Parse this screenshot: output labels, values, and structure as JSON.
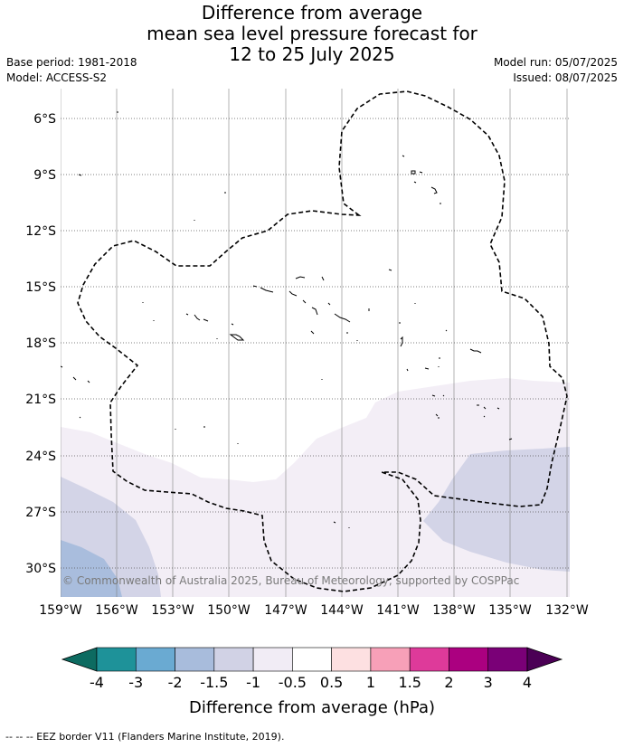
{
  "header": {
    "title_line1": "Difference from average",
    "title_line2": "mean sea level pressure forecast for",
    "title_line3": "12 to 25 July 2025",
    "base_period": "Base period: 1981-2018",
    "model": "Model: ACCESS-S2",
    "model_run": "Model run: 05/07/2025",
    "issued": "Issued: 08/07/2025"
  },
  "map": {
    "lat_labels": [
      "6°S",
      "9°S",
      "12°S",
      "15°S",
      "18°S",
      "21°S",
      "24°S",
      "27°S",
      "30°S"
    ],
    "lon_labels": [
      "159°W",
      "156°W",
      "153°W",
      "150°W",
      "147°W",
      "144°W",
      "141°W",
      "138°W",
      "135°W",
      "132°W"
    ],
    "copyright": "© Commonwealth of Australia 2025, Bureau of Meteorology, supported by COSPPac"
  },
  "colorbar": {
    "ticks": [
      "-4",
      "-3",
      "-2",
      "-1.5",
      "-1",
      "-0.5",
      "0.5",
      "1",
      "1.5",
      "2",
      "3",
      "4"
    ],
    "colors": [
      "#1e9299",
      "#6aaad2",
      "#a8bcdc",
      "#d1d2e5",
      "#f1ecf5",
      "#ffffff",
      "#fde0e1",
      "#f7a0b8",
      "#de3a9a",
      "#ab0080",
      "#7a0077"
    ],
    "under_color": "#0d6b61",
    "over_color": "#4b0055",
    "label": "Difference from average (hPa)"
  },
  "footer": {
    "legend_text": "--  --  -- EEZ border V11 (Flanders Marine Institute, 2019)."
  }
}
